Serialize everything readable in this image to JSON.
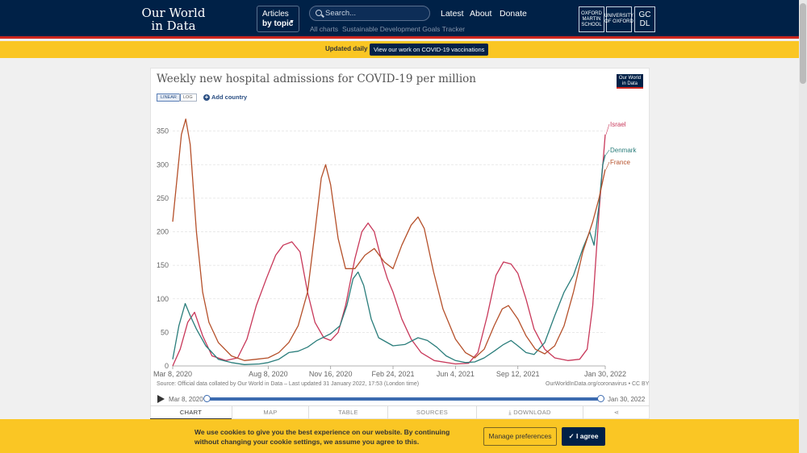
{
  "header": {
    "logo_line1": "Our World",
    "logo_line2": "in Data",
    "articles_label": "Articles",
    "by_topic_label": "by topic",
    "search_placeholder": "Search...",
    "nav": [
      "Latest",
      "About",
      "Donate"
    ],
    "sub_nav": [
      "All charts",
      "Sustainable Development Goals Tracker"
    ],
    "partner_logos": [
      {
        "text": "OXFORD MARTIN SCHOOL"
      },
      {
        "text": "UNIVERSITY OF OXFORD"
      },
      {
        "text": "GC DL"
      }
    ]
  },
  "banner": {
    "text": "Updated daily",
    "button": "View our work on COVID-19 vaccinations"
  },
  "chart_card": {
    "badge_line1": "Our World",
    "badge_line2": "in Data",
    "linear_label": "LINEAR",
    "log_label": "LOG",
    "add_country_label": "Add country",
    "source": "Source: Official data collated by Our World in Data – Last updated 31 January 2022, 17:53 (London time)",
    "source_right": "OurWorldInData.org/coronavirus • CC BY",
    "timeline_start": "Mar 8, 2020",
    "timeline_end": "Jan 30, 2022",
    "tabs": [
      "CHART",
      "MAP",
      "TABLE",
      "SOURCES",
      "DOWNLOAD",
      ""
    ]
  },
  "cookie": {
    "text": "We use cookies to give you the best experience on our website. By continuing without changing your cookie settings, we assume you agree to this.",
    "manage": "Manage preferences",
    "agree": "I agree"
  },
  "colors": {
    "header_bg": "#002147",
    "accent_red": "#ce261e",
    "banner_yellow": "#fac624",
    "israel": "#c8385a",
    "denmark": "#2a7d7b",
    "france": "#b5502a"
  },
  "chart_data": {
    "type": "line",
    "title": "Weekly new hospital admissions for COVID-19 per million",
    "xlabel": "",
    "ylabel": "",
    "ylim": [
      0,
      370
    ],
    "yticks": [
      0,
      50,
      100,
      150,
      200,
      250,
      300,
      350
    ],
    "xlim": [
      "2020-03-08",
      "2022-01-30"
    ],
    "xticks": [
      "Mar 8, 2020",
      "Aug 8, 2020",
      "Nov 16, 2020",
      "Feb 24, 2021",
      "Jun 4, 2021",
      "Sep 12, 2021",
      "Jan 30, 2022"
    ],
    "xtick_dates": [
      "2020-03-08",
      "2020-08-08",
      "2020-11-16",
      "2021-02-24",
      "2021-06-04",
      "2021-09-12",
      "2022-01-30"
    ],
    "grid": true,
    "legend": "end-of-line labels",
    "series": [
      {
        "name": "Israel",
        "color": "#c8385a",
        "points": [
          [
            "2020-03-08",
            0
          ],
          [
            "2020-03-20",
            25
          ],
          [
            "2020-04-01",
            65
          ],
          [
            "2020-04-12",
            80
          ],
          [
            "2020-04-25",
            45
          ],
          [
            "2020-05-10",
            15
          ],
          [
            "2020-06-01",
            8
          ],
          [
            "2020-06-20",
            12
          ],
          [
            "2020-07-05",
            40
          ],
          [
            "2020-07-20",
            90
          ],
          [
            "2020-08-05",
            130
          ],
          [
            "2020-08-20",
            165
          ],
          [
            "2020-09-01",
            180
          ],
          [
            "2020-09-15",
            185
          ],
          [
            "2020-09-28",
            170
          ],
          [
            "2020-10-10",
            110
          ],
          [
            "2020-10-22",
            65
          ],
          [
            "2020-11-05",
            42
          ],
          [
            "2020-11-16",
            38
          ],
          [
            "2020-11-28",
            50
          ],
          [
            "2020-12-10",
            90
          ],
          [
            "2020-12-25",
            160
          ],
          [
            "2021-01-05",
            200
          ],
          [
            "2021-01-15",
            213
          ],
          [
            "2021-01-25",
            200
          ],
          [
            "2021-02-05",
            160
          ],
          [
            "2021-02-15",
            130
          ],
          [
            "2021-02-24",
            110
          ],
          [
            "2021-03-10",
            70
          ],
          [
            "2021-03-25",
            40
          ],
          [
            "2021-04-10",
            20
          ],
          [
            "2021-05-01",
            8
          ],
          [
            "2021-06-04",
            3
          ],
          [
            "2021-06-25",
            4
          ],
          [
            "2021-07-10",
            20
          ],
          [
            "2021-07-25",
            75
          ],
          [
            "2021-08-08",
            135
          ],
          [
            "2021-08-20",
            155
          ],
          [
            "2021-09-01",
            152
          ],
          [
            "2021-09-12",
            138
          ],
          [
            "2021-09-25",
            100
          ],
          [
            "2021-10-08",
            55
          ],
          [
            "2021-10-25",
            25
          ],
          [
            "2021-11-10",
            12
          ],
          [
            "2021-12-01",
            8
          ],
          [
            "2021-12-20",
            10
          ],
          [
            "2022-01-01",
            25
          ],
          [
            "2022-01-10",
            90
          ],
          [
            "2022-01-20",
            230
          ],
          [
            "2022-01-30",
            345
          ]
        ]
      },
      {
        "name": "Denmark",
        "color": "#2a7d7b",
        "points": [
          [
            "2020-03-08",
            10
          ],
          [
            "2020-03-18",
            60
          ],
          [
            "2020-03-28",
            93
          ],
          [
            "2020-04-05",
            75
          ],
          [
            "2020-04-15",
            55
          ],
          [
            "2020-04-30",
            30
          ],
          [
            "2020-05-20",
            10
          ],
          [
            "2020-06-10",
            5
          ],
          [
            "2020-07-01",
            2
          ],
          [
            "2020-07-25",
            3
          ],
          [
            "2020-08-08",
            5
          ],
          [
            "2020-08-25",
            10
          ],
          [
            "2020-09-10",
            20
          ],
          [
            "2020-09-25",
            22
          ],
          [
            "2020-10-10",
            28
          ],
          [
            "2020-10-25",
            38
          ],
          [
            "2020-11-16",
            48
          ],
          [
            "2020-12-01",
            60
          ],
          [
            "2020-12-12",
            90
          ],
          [
            "2020-12-22",
            130
          ],
          [
            "2020-12-30",
            140
          ],
          [
            "2021-01-08",
            120
          ],
          [
            "2021-01-20",
            70
          ],
          [
            "2021-02-01",
            42
          ],
          [
            "2021-02-24",
            30
          ],
          [
            "2021-03-15",
            32
          ],
          [
            "2021-04-05",
            42
          ],
          [
            "2021-04-20",
            38
          ],
          [
            "2021-05-05",
            28
          ],
          [
            "2021-05-20",
            15
          ],
          [
            "2021-06-04",
            8
          ],
          [
            "2021-06-20",
            5
          ],
          [
            "2021-07-05",
            6
          ],
          [
            "2021-07-20",
            12
          ],
          [
            "2021-08-05",
            22
          ],
          [
            "2021-08-20",
            32
          ],
          [
            "2021-09-01",
            38
          ],
          [
            "2021-09-12",
            30
          ],
          [
            "2021-09-25",
            20
          ],
          [
            "2021-10-08",
            17
          ],
          [
            "2021-10-25",
            35
          ],
          [
            "2021-11-10",
            75
          ],
          [
            "2021-11-25",
            110
          ],
          [
            "2021-12-10",
            135
          ],
          [
            "2021-12-25",
            175
          ],
          [
            "2022-01-05",
            200
          ],
          [
            "2022-01-12",
            180
          ],
          [
            "2022-01-20",
            240
          ],
          [
            "2022-01-26",
            300
          ],
          [
            "2022-01-30",
            315
          ]
        ]
      },
      {
        "name": "France",
        "color": "#b5502a",
        "points": [
          [
            "2020-03-08",
            215
          ],
          [
            "2020-03-15",
            280
          ],
          [
            "2020-03-22",
            345
          ],
          [
            "2020-03-29",
            368
          ],
          [
            "2020-04-05",
            330
          ],
          [
            "2020-04-15",
            200
          ],
          [
            "2020-04-25",
            110
          ],
          [
            "2020-05-05",
            65
          ],
          [
            "2020-05-20",
            35
          ],
          [
            "2020-06-10",
            15
          ],
          [
            "2020-07-01",
            8
          ],
          [
            "2020-07-20",
            10
          ],
          [
            "2020-08-08",
            12
          ],
          [
            "2020-08-25",
            20
          ],
          [
            "2020-09-10",
            35
          ],
          [
            "2020-09-25",
            60
          ],
          [
            "2020-10-10",
            110
          ],
          [
            "2020-10-22",
            200
          ],
          [
            "2020-11-01",
            280
          ],
          [
            "2020-11-08",
            300
          ],
          [
            "2020-11-16",
            270
          ],
          [
            "2020-11-28",
            190
          ],
          [
            "2020-12-10",
            145
          ],
          [
            "2020-12-25",
            145
          ],
          [
            "2021-01-10",
            165
          ],
          [
            "2021-01-25",
            175
          ],
          [
            "2021-02-10",
            155
          ],
          [
            "2021-02-24",
            145
          ],
          [
            "2021-03-10",
            180
          ],
          [
            "2021-03-25",
            210
          ],
          [
            "2021-04-05",
            222
          ],
          [
            "2021-04-15",
            205
          ],
          [
            "2021-04-30",
            140
          ],
          [
            "2021-05-15",
            85
          ],
          [
            "2021-06-04",
            40
          ],
          [
            "2021-06-20",
            20
          ],
          [
            "2021-07-05",
            12
          ],
          [
            "2021-07-20",
            25
          ],
          [
            "2021-08-05",
            60
          ],
          [
            "2021-08-18",
            85
          ],
          [
            "2021-08-28",
            90
          ],
          [
            "2021-09-12",
            70
          ],
          [
            "2021-09-25",
            45
          ],
          [
            "2021-10-10",
            25
          ],
          [
            "2021-10-25",
            18
          ],
          [
            "2021-11-10",
            30
          ],
          [
            "2021-11-25",
            60
          ],
          [
            "2021-12-10",
            110
          ],
          [
            "2021-12-25",
            170
          ],
          [
            "2022-01-10",
            215
          ],
          [
            "2022-01-20",
            250
          ],
          [
            "2022-01-30",
            293
          ]
        ]
      }
    ]
  }
}
